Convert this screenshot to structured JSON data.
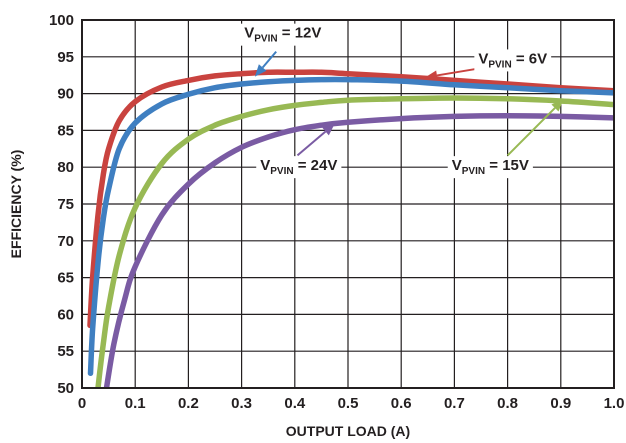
{
  "chart_data": {
    "type": "line",
    "xlabel": "OUTPUT LOAD (A)",
    "ylabel": "EFFICIENCY (%)",
    "xlim": [
      0,
      1.0
    ],
    "ylim": [
      50,
      100
    ],
    "grid": true,
    "x_ticks": [
      "0",
      "0.1",
      "0.2",
      "0.3",
      "0.4",
      "0.5",
      "0.6",
      "0.7",
      "0.8",
      "0.9",
      "1.0"
    ],
    "y_ticks": [
      "50",
      "55",
      "60",
      "65",
      "70",
      "75",
      "80",
      "85",
      "90",
      "95",
      "100"
    ],
    "series": [
      {
        "name": "VPVIN = 6V",
        "color": "#c9433f",
        "points": [
          [
            0.015,
            58.5
          ],
          [
            0.02,
            65
          ],
          [
            0.03,
            73.5
          ],
          [
            0.04,
            79
          ],
          [
            0.05,
            82.5
          ],
          [
            0.07,
            86.3
          ],
          [
            0.1,
            88.9
          ],
          [
            0.15,
            90.9
          ],
          [
            0.2,
            91.8
          ],
          [
            0.25,
            92.4
          ],
          [
            0.3,
            92.7
          ],
          [
            0.35,
            92.9
          ],
          [
            0.4,
            92.9
          ],
          [
            0.45,
            92.9
          ],
          [
            0.5,
            92.7
          ],
          [
            0.6,
            92.3
          ],
          [
            0.7,
            91.8
          ],
          [
            0.8,
            91.3
          ],
          [
            0.9,
            90.8
          ],
          [
            1.0,
            90.4
          ]
        ]
      },
      {
        "name": "VPVIN = 12V",
        "color": "#3f7fc1",
        "points": [
          [
            0.016,
            52
          ],
          [
            0.02,
            58
          ],
          [
            0.03,
            67
          ],
          [
            0.04,
            73
          ],
          [
            0.05,
            77
          ],
          [
            0.07,
            82.5
          ],
          [
            0.1,
            86
          ],
          [
            0.15,
            88.6
          ],
          [
            0.2,
            89.9
          ],
          [
            0.25,
            90.8
          ],
          [
            0.3,
            91.3
          ],
          [
            0.35,
            91.6
          ],
          [
            0.4,
            91.8
          ],
          [
            0.45,
            91.9
          ],
          [
            0.5,
            91.9
          ],
          [
            0.6,
            91.7
          ],
          [
            0.7,
            91.2
          ],
          [
            0.8,
            90.8
          ],
          [
            0.9,
            90.4
          ],
          [
            1.0,
            90.1
          ]
        ]
      },
      {
        "name": "VPVIN = 15V",
        "color": "#98b954",
        "points": [
          [
            0.03,
            50
          ],
          [
            0.04,
            56
          ],
          [
            0.05,
            61
          ],
          [
            0.07,
            68
          ],
          [
            0.1,
            74.5
          ],
          [
            0.15,
            80.5
          ],
          [
            0.2,
            83.8
          ],
          [
            0.25,
            85.7
          ],
          [
            0.3,
            86.9
          ],
          [
            0.35,
            87.8
          ],
          [
            0.4,
            88.4
          ],
          [
            0.45,
            88.8
          ],
          [
            0.5,
            89.1
          ],
          [
            0.6,
            89.3
          ],
          [
            0.7,
            89.4
          ],
          [
            0.8,
            89.3
          ],
          [
            0.9,
            89.0
          ],
          [
            1.0,
            88.5
          ]
        ]
      },
      {
        "name": "VPVIN = 24V",
        "color": "#7a5ba3",
        "points": [
          [
            0.046,
            50
          ],
          [
            0.06,
            56
          ],
          [
            0.08,
            62
          ],
          [
            0.1,
            66.5
          ],
          [
            0.15,
            73.5
          ],
          [
            0.2,
            77.7
          ],
          [
            0.25,
            80.6
          ],
          [
            0.3,
            82.7
          ],
          [
            0.35,
            84.1
          ],
          [
            0.4,
            85.1
          ],
          [
            0.45,
            85.7
          ],
          [
            0.5,
            86.1
          ],
          [
            0.6,
            86.6
          ],
          [
            0.7,
            86.9
          ],
          [
            0.8,
            87.0
          ],
          [
            0.9,
            86.9
          ],
          [
            1.0,
            86.7
          ]
        ]
      }
    ],
    "annotations": [
      {
        "prefix": "V",
        "sub": "PVIN",
        "suffix": " = 12V",
        "anchor": "start",
        "label_at": [
          0.305,
          97.6
        ],
        "arrow_from": [
          0.365,
          95.7
        ],
        "arrow_to": [
          0.325,
          92.3
        ],
        "color": "#3f7fc1"
      },
      {
        "prefix": "V",
        "sub": "PVIN",
        "suffix": " = 6V",
        "anchor": "start",
        "label_at": [
          0.745,
          94.1
        ],
        "arrow_from": [
          0.745,
          93.4
        ],
        "arrow_to": [
          0.645,
          92.2
        ],
        "color": "#c9433f"
      },
      {
        "prefix": "V",
        "sub": "PVIN",
        "suffix": " = 24V",
        "anchor": "start",
        "label_at": [
          0.335,
          79.6
        ],
        "arrow_from": [
          0.405,
          81.6
        ],
        "arrow_to": [
          0.475,
          85.9
        ],
        "color": "#7a5ba3"
      },
      {
        "prefix": "V",
        "sub": "PVIN",
        "suffix": " = 15V",
        "anchor": "start",
        "label_at": [
          0.695,
          79.6
        ],
        "arrow_from": [
          0.8,
          81.6
        ],
        "arrow_to": [
          0.905,
          89.2
        ],
        "color": "#98b954"
      }
    ]
  }
}
